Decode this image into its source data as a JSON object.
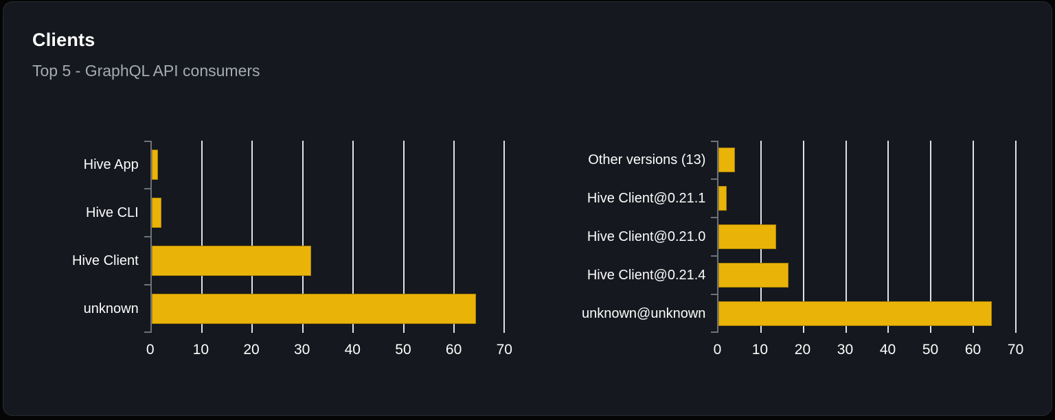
{
  "card": {
    "title": "Clients",
    "subtitle": "Top 5 - GraphQL API consumers"
  },
  "colors": {
    "page_bg": "#050505",
    "card_bg": "#15181e",
    "card_border": "#262b33",
    "bar": "#eab308",
    "gridline": "#dee3ea",
    "axis": "#6e737b",
    "label_text": "#fcfcfc",
    "title_text": "#ffffff",
    "subtitle_text": "#a6abb3"
  },
  "chart_data": [
    {
      "type": "bar",
      "orientation": "horizontal",
      "title": "",
      "categories": [
        "Hive App",
        "Hive CLI",
        "Hive Client",
        "unknown"
      ],
      "values": [
        1.2,
        1.9,
        31.7,
        64.4
      ],
      "xticks": [
        0,
        10,
        20,
        30,
        40,
        50,
        60,
        70
      ],
      "xlim": [
        0,
        72
      ],
      "grid": true,
      "legend": false,
      "bar_color": "#eab308"
    },
    {
      "type": "bar",
      "orientation": "horizontal",
      "title": "",
      "categories": [
        "Other versions (13)",
        "Hive Client@0.21.1",
        "Hive Client@0.21.0",
        "Hive Client@0.21.4",
        "unknown@unknown"
      ],
      "values": [
        3.8,
        1.8,
        13.6,
        16.4,
        64.4
      ],
      "xticks": [
        0,
        10,
        20,
        30,
        40,
        50,
        60,
        70
      ],
      "xlim": [
        0,
        72
      ],
      "grid": true,
      "legend": false,
      "bar_color": "#eab308"
    }
  ]
}
